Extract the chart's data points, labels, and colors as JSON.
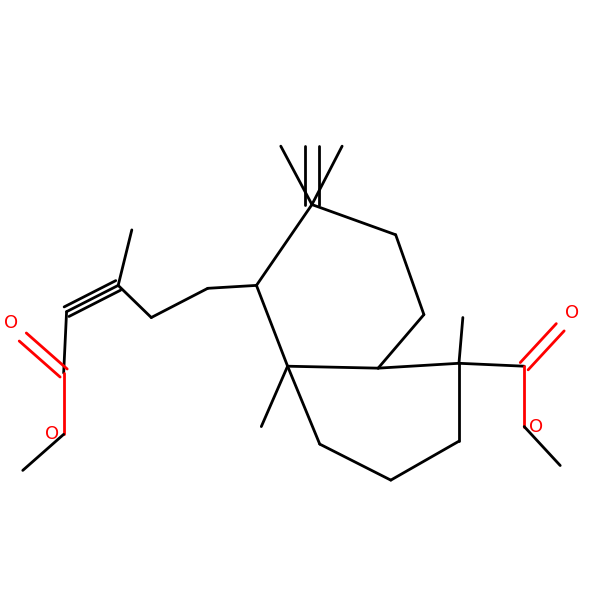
{
  "background_color": "#ffffff",
  "bond_color": "#000000",
  "oxygen_color": "#ff0000",
  "line_width": 2.0,
  "figsize": [
    6.0,
    6.0
  ],
  "dpi": 100,
  "xlim": [
    0.0,
    6.0
  ],
  "ylim": [
    0.8,
    5.8
  ]
}
